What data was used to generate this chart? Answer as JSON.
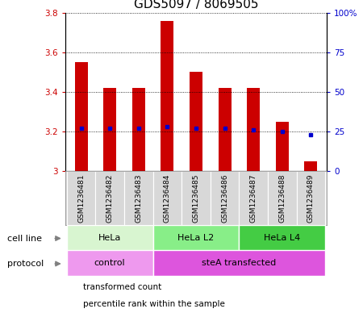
{
  "title": "GDS5097 / 8069505",
  "samples": [
    "GSM1236481",
    "GSM1236482",
    "GSM1236483",
    "GSM1236484",
    "GSM1236485",
    "GSM1236486",
    "GSM1236487",
    "GSM1236488",
    "GSM1236489"
  ],
  "bar_tops": [
    3.55,
    3.42,
    3.42,
    3.76,
    3.5,
    3.42,
    3.42,
    3.25,
    3.05
  ],
  "bar_bottoms": [
    3.0,
    3.0,
    3.0,
    3.0,
    3.0,
    3.0,
    3.0,
    3.0,
    3.0
  ],
  "percentile_pct": [
    27,
    27,
    27,
    28,
    27,
    27,
    26,
    25,
    23
  ],
  "ylim": [
    3.0,
    3.8
  ],
  "y2lim": [
    0,
    100
  ],
  "yticks": [
    3.0,
    3.2,
    3.4,
    3.6,
    3.8
  ],
  "y2ticks": [
    0,
    25,
    50,
    75,
    100
  ],
  "y2ticklabels": [
    "0",
    "25",
    "50",
    "75",
    "100%"
  ],
  "bar_color": "#cc0000",
  "dot_color": "#0000cc",
  "bar_width": 0.45,
  "cell_line_groups": [
    {
      "label": "HeLa",
      "start": 0,
      "end": 3,
      "color": "#d8f5d0"
    },
    {
      "label": "HeLa L2",
      "start": 3,
      "end": 6,
      "color": "#88ee88"
    },
    {
      "label": "HeLa L4",
      "start": 6,
      "end": 9,
      "color": "#44cc44"
    }
  ],
  "protocol_groups": [
    {
      "label": "control",
      "start": 0,
      "end": 3,
      "color": "#ee99ee"
    },
    {
      "label": "steA transfected",
      "start": 3,
      "end": 9,
      "color": "#dd55dd"
    }
  ],
  "cell_line_label": "cell line",
  "protocol_label": "protocol",
  "legend_items": [
    {
      "label": "transformed count",
      "color": "#cc0000"
    },
    {
      "label": "percentile rank within the sample",
      "color": "#0000cc"
    }
  ],
  "sample_bg": "#d8d8d8",
  "plot_bg": "#ffffff",
  "title_fontsize": 11,
  "tick_fontsize": 7.5,
  "sample_fontsize": 6.5,
  "row_label_fontsize": 8,
  "group_fontsize": 8,
  "legend_fontsize": 7.5
}
